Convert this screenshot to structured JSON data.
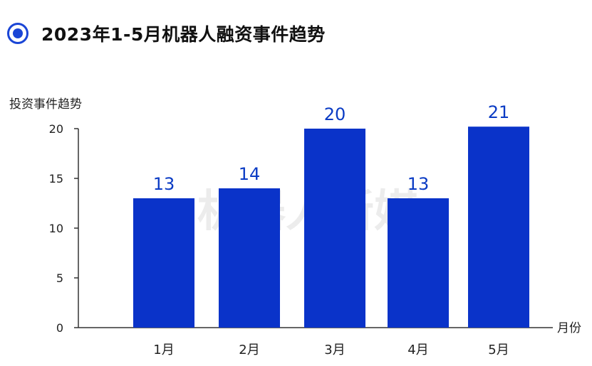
{
  "header": {
    "title": "2023年1-5月机器人融资事件趋势",
    "icon": "radio-target-icon",
    "accent_color": "#1a45d6"
  },
  "watermark": "机器人新媒",
  "chart_data": {
    "type": "bar",
    "title": "2023年1-5月机器人融资事件趋势",
    "ylabel": "投资事件趋势",
    "xlabel": "月份",
    "categories": [
      "1月",
      "2月",
      "3月",
      "4月",
      "5月"
    ],
    "series": [
      {
        "values": [
          13,
          14,
          20,
          13,
          21
        ]
      }
    ],
    "data_labels": [
      "13",
      "14",
      "20",
      "13",
      "21"
    ],
    "ylim": [
      0,
      20
    ],
    "yticks": [
      0,
      5,
      10,
      15,
      20
    ],
    "grid": false,
    "legend": "none",
    "bar_color": "#0a33c9",
    "label_color": "#0a3bc4"
  }
}
